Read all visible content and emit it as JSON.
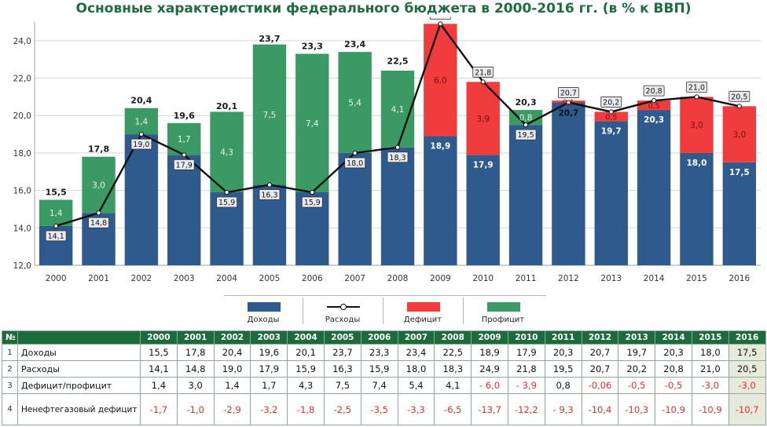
{
  "title": "Основные характеристики федерального бюджета в 2000-2016 гг. (в % к ВВП)",
  "colors": {
    "revenue": "#2e5a8e",
    "deficit": "#f03c3c",
    "surplus": "#3b9a64",
    "expenses_line": "#111111",
    "title": "#1f6d3e",
    "table_header": "#1d6b3a",
    "negative_text": "#e0302a"
  },
  "chart_data": {
    "type": "bar",
    "categories": [
      "2000",
      "2001",
      "2002",
      "2003",
      "2004",
      "2005",
      "2006",
      "2007",
      "2008",
      "2009",
      "2010",
      "2011",
      "2012",
      "2013",
      "2014",
      "2015",
      "2016"
    ],
    "ylim": [
      12.0,
      25.0
    ],
    "yticks": [
      "12,0",
      "14,0",
      "16,0",
      "18,0",
      "20,0",
      "22,0",
      "24,0"
    ],
    "ytick_values": [
      12,
      14,
      16,
      18,
      20,
      22,
      24
    ],
    "series": [
      {
        "name": "Доходы",
        "values": [
          14.1,
          14.8,
          19.0,
          17.9,
          15.9,
          16.3,
          15.9,
          18.0,
          18.3,
          18.9,
          17.9,
          19.5,
          20.7,
          19.7,
          20.3,
          18.0,
          17.5
        ],
        "labels": [
          "14,1",
          "14,8",
          "19,0",
          "17,9",
          "15,9",
          "16,3",
          "15,9",
          "18,0",
          "18,3",
          "18,9",
          "17,9",
          "19,5",
          "20,7",
          "19,7",
          "20,3",
          "18,0",
          "17,5"
        ]
      },
      {
        "name": "Расходы",
        "values": [
          14.1,
          14.8,
          19.0,
          17.9,
          15.9,
          16.3,
          15.9,
          18.0,
          18.3,
          24.9,
          21.8,
          19.5,
          20.7,
          20.2,
          20.8,
          21.0,
          20.5
        ],
        "labels": [
          "14,1",
          "14,8",
          "19,0",
          "17,9",
          "15,9",
          "16,3",
          "15,9",
          "18,0",
          "18,3",
          "24,9",
          "21,8",
          "19,5",
          "20,7",
          "20,2",
          "20,8",
          "21,0",
          "20,5"
        ]
      },
      {
        "name": "Дефицит",
        "values": [
          0,
          0,
          0,
          0,
          0,
          0,
          0,
          0,
          0,
          6.0,
          3.9,
          0,
          0.1,
          0.5,
          0.5,
          3.0,
          3.0
        ],
        "labels": [
          "",
          "",
          "",
          "",
          "",
          "",
          "",
          "",
          "",
          "6,0",
          "3,9",
          "",
          "0,1",
          "0,5",
          "0,5",
          "3,0",
          "3,0"
        ]
      },
      {
        "name": "Профицит",
        "values": [
          1.4,
          3.0,
          1.4,
          1.7,
          4.3,
          7.5,
          7.4,
          5.4,
          4.1,
          0,
          0,
          0.8,
          0,
          0,
          0,
          0,
          0
        ],
        "labels": [
          "1,4",
          "3,0",
          "1,4",
          "1,7",
          "4,3",
          "7,5",
          "7,4",
          "5,4",
          "4,1",
          "",
          "",
          "0,8",
          "",
          "",
          "",
          "",
          ""
        ]
      }
    ],
    "totals": [
      "15,5",
      "17,8",
      "20,4",
      "19,6",
      "20,1",
      "23,7",
      "23,3",
      "23,4",
      "22,5",
      "24,9",
      "21,8",
      "20,3",
      "20,7",
      "20,2",
      "20,8",
      "21,0",
      "20,5"
    ],
    "totals_values": [
      15.5,
      17.8,
      20.4,
      19.6,
      20.1,
      23.7,
      23.3,
      23.4,
      22.5,
      24.9,
      21.8,
      20.3,
      20.7,
      20.2,
      20.8,
      21.0,
      20.5
    ],
    "legend": [
      "Доходы",
      "Расходы",
      "Дефицит",
      "Профицит"
    ],
    "legend_position": "bottom"
  },
  "table": {
    "num_header": "№",
    "years": [
      "2000",
      "2001",
      "2002",
      "2003",
      "2004",
      "2005",
      "2006",
      "2007",
      "2008",
      "2009",
      "2010",
      "2011",
      "2012",
      "2013",
      "2014",
      "2015",
      "2016"
    ],
    "rows": [
      {
        "num": "1",
        "label": "Доходы",
        "cells": [
          "15,5",
          "17,8",
          "20,4",
          "19,6",
          "20,1",
          "23,7",
          "23,3",
          "23,4",
          "22,5",
          "18,9",
          "17,9",
          "20,3",
          "20,7",
          "19,7",
          "20,3",
          "18,0",
          "17,5"
        ]
      },
      {
        "num": "2",
        "label": "Расходы",
        "cells": [
          "14,1",
          "14,8",
          "19,0",
          "17,9",
          "15,9",
          "16,3",
          "15,9",
          "18,0",
          "18,3",
          "24,9",
          "21,8",
          "19,5",
          "20,7",
          "20,2",
          "20,8",
          "21,0",
          "20,5"
        ]
      },
      {
        "num": "3",
        "label": "Дефицит/профицит",
        "cells": [
          "1,4",
          "3,0",
          "1,4",
          "1,7",
          "4,3",
          "7,5",
          "7,4",
          "5,4",
          "4,1",
          "- 6,0",
          "- 3,9",
          "0,8",
          "-0,06",
          "-0,5",
          "-0,5",
          "-3,0",
          "-3,0"
        ]
      },
      {
        "num": "4",
        "label": "Ненефтегазовый дефицит",
        "cells": [
          "-1,7",
          "-1,0",
          "-2,9",
          "-3,2",
          "-1,8",
          "-2,5",
          "-3,5",
          "-3,3",
          "-6,5",
          "-13,7",
          "-12,2",
          "- 9,3",
          "-10,4",
          "-10,3",
          "-10,9",
          "-10,9",
          "-10,7"
        ]
      }
    ]
  }
}
